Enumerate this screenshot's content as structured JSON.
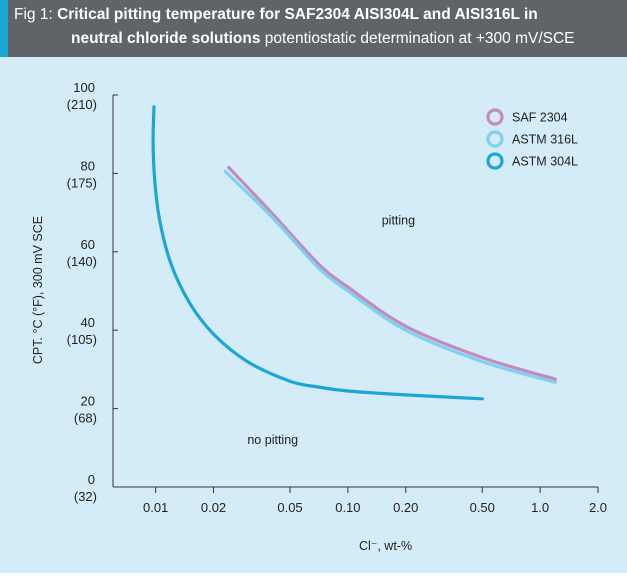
{
  "caption": {
    "prefix": "Fig 1: ",
    "bold_line1": "Critical pitting temperature for SAF2304 AISI304L and AISI316L in",
    "bold_line2": "neutral chloride solutions",
    "normal_line2": " potentiostatic determination at +300 mV/SCE"
  },
  "chart_data": {
    "type": "line",
    "xlabel": "Cl⁻, wt-%",
    "ylabel": "CPT. °C (°F), 300 mV SCE",
    "x_scale": "log",
    "xlim": [
      0.006,
      2.0
    ],
    "ylim": [
      0,
      100
    ],
    "x_ticks": [
      {
        "value": 0.01,
        "label": "0.01"
      },
      {
        "value": 0.02,
        "label": "0.02"
      },
      {
        "value": 0.05,
        "label": "0.05"
      },
      {
        "value": 0.1,
        "label": "0.10"
      },
      {
        "value": 0.2,
        "label": "0.20"
      },
      {
        "value": 0.5,
        "label": "0.50"
      },
      {
        "value": 1.0,
        "label": "1.0"
      },
      {
        "value": 2.0,
        "label": "2.0"
      }
    ],
    "y_ticks": [
      {
        "value": 0,
        "label": "0",
        "sub": "(32)"
      },
      {
        "value": 20,
        "label": "20",
        "sub": "(68)"
      },
      {
        "value": 40,
        "label": "40",
        "sub": "(105)"
      },
      {
        "value": 60,
        "label": "60",
        "sub": "(140)"
      },
      {
        "value": 80,
        "label": "80",
        "sub": "(175)"
      },
      {
        "value": 100,
        "label": "100",
        "sub": "(210)"
      }
    ],
    "series": [
      {
        "name": "SAF 2304",
        "color": "#c58bb8",
        "x": [
          0.024,
          0.04,
          0.07,
          0.1,
          0.2,
          0.5,
          1.2
        ],
        "y": [
          81.5,
          70,
          57,
          51,
          41,
          33,
          27.5
        ]
      },
      {
        "name": "ASTM 316L",
        "color": "#7fd1f1",
        "x": [
          0.023,
          0.04,
          0.07,
          0.1,
          0.2,
          0.5,
          1.2
        ],
        "y": [
          80.5,
          69,
          56,
          50,
          40,
          32,
          26.7
        ]
      },
      {
        "name": "ASTM 304L",
        "color": "#1aa7d6",
        "x": [
          0.0098,
          0.0097,
          0.0099,
          0.0105,
          0.012,
          0.015,
          0.02,
          0.03,
          0.05,
          0.07,
          0.1,
          0.2,
          0.5
        ],
        "y": [
          97,
          88,
          78,
          68,
          57,
          47,
          39,
          32,
          27,
          25.5,
          24.5,
          23.5,
          22.5
        ]
      }
    ],
    "annotations": [
      {
        "text": "pitting",
        "x": 0.15,
        "y": 67
      },
      {
        "text": "no pitting",
        "x": 0.03,
        "y": 11
      }
    ],
    "legend_position": "top-right",
    "grid": false
  }
}
